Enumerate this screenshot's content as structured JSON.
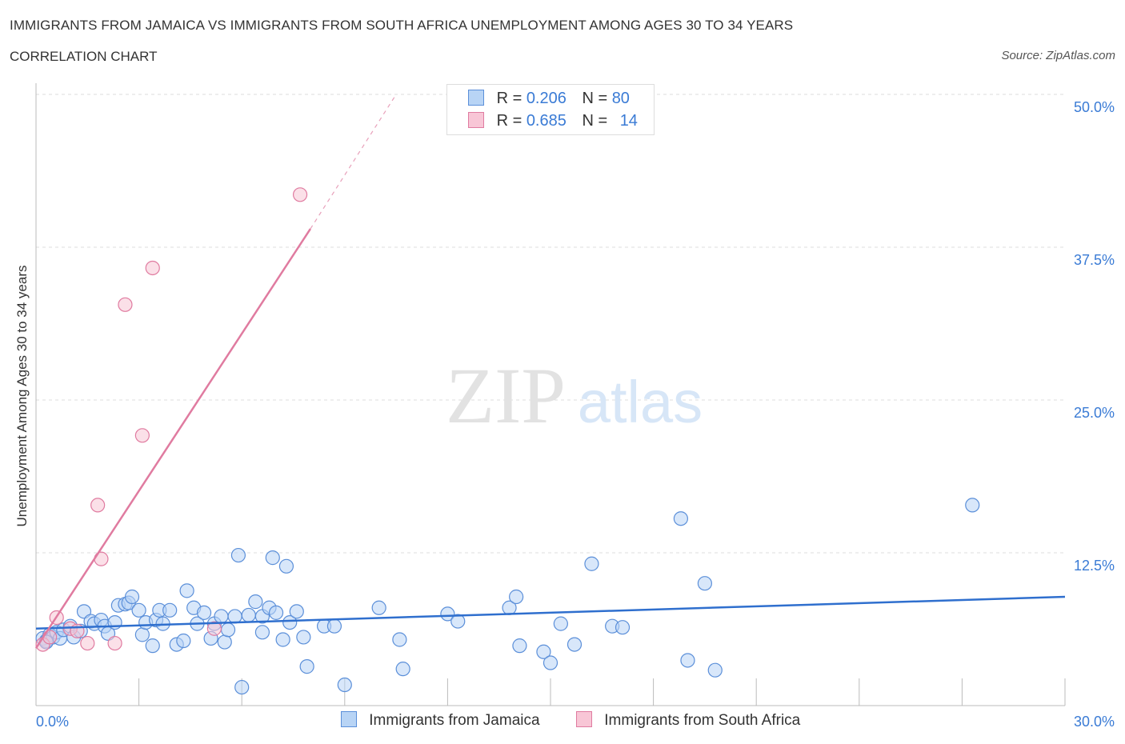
{
  "header": {
    "title": "IMMIGRANTS FROM JAMAICA VS IMMIGRANTS FROM SOUTH AFRICA UNEMPLOYMENT AMONG AGES 30 TO 34 YEARS",
    "subtitle": "CORRELATION CHART",
    "source": "Source: ZipAtlas.com"
  },
  "legend": {
    "r_label": "R =",
    "n_label": "N =",
    "series": [
      {
        "name": "Immigrants from Jamaica",
        "r": "0.206",
        "n": "80",
        "fill": "#b8d4f5",
        "stroke": "#5b8fd9"
      },
      {
        "name": "Immigrants from South Africa",
        "r": "0.685",
        "n": "14",
        "fill": "#f8c6d6",
        "stroke": "#e07ba0"
      }
    ]
  },
  "watermark": {
    "zip": "ZIP",
    "atlas": "atlas"
  },
  "chart_data": {
    "type": "scatter",
    "title": "IMMIGRANTS FROM JAMAICA VS IMMIGRANTS FROM SOUTH AFRICA UNEMPLOYMENT AMONG AGES 30 TO 34 YEARS",
    "xlabel": "",
    "ylabel": "Unemployment Among Ages 30 to 34 years",
    "xlim": [
      0,
      30
    ],
    "ylim": [
      0,
      50
    ],
    "x_tick_labels": [
      "0.0%",
      "30.0%"
    ],
    "y_tick_labels": [
      "12.5%",
      "25.0%",
      "37.5%",
      "50.0%"
    ],
    "y_tick_values": [
      12.5,
      25.0,
      37.5,
      50.0
    ],
    "x_minor_ticks": [
      0,
      3,
      6,
      9,
      12,
      15,
      18,
      21,
      24,
      27,
      30
    ],
    "series": [
      {
        "name": "Immigrants from Jamaica",
        "color": "#5b8fd9",
        "fill": "#b8d4f5",
        "points": [
          [
            0.2,
            5.5
          ],
          [
            0.3,
            5.3
          ],
          [
            0.4,
            5.8
          ],
          [
            0.5,
            5.6
          ],
          [
            0.6,
            6.0
          ],
          [
            0.7,
            5.5
          ],
          [
            0.8,
            6.2
          ],
          [
            1.0,
            6.5
          ],
          [
            1.1,
            5.6
          ],
          [
            1.3,
            6.1
          ],
          [
            1.4,
            7.7
          ],
          [
            1.6,
            6.9
          ],
          [
            1.7,
            6.7
          ],
          [
            1.9,
            7.0
          ],
          [
            2.0,
            6.5
          ],
          [
            2.1,
            5.9
          ],
          [
            2.3,
            6.8
          ],
          [
            2.4,
            8.2
          ],
          [
            2.6,
            8.3
          ],
          [
            2.7,
            8.4
          ],
          [
            2.8,
            8.9
          ],
          [
            3.0,
            7.8
          ],
          [
            3.1,
            5.8
          ],
          [
            3.2,
            6.8
          ],
          [
            3.4,
            4.9
          ],
          [
            3.5,
            7.0
          ],
          [
            3.6,
            7.8
          ],
          [
            3.7,
            6.7
          ],
          [
            3.9,
            7.8
          ],
          [
            4.1,
            5.0
          ],
          [
            4.3,
            5.3
          ],
          [
            4.4,
            9.4
          ],
          [
            4.6,
            8.0
          ],
          [
            4.7,
            6.7
          ],
          [
            4.9,
            7.6
          ],
          [
            5.1,
            5.5
          ],
          [
            5.2,
            6.7
          ],
          [
            5.4,
            7.3
          ],
          [
            5.5,
            5.2
          ],
          [
            5.6,
            6.2
          ],
          [
            5.8,
            7.3
          ],
          [
            5.9,
            12.3
          ],
          [
            6.0,
            1.5
          ],
          [
            6.2,
            7.4
          ],
          [
            6.4,
            8.5
          ],
          [
            6.6,
            7.3
          ],
          [
            6.6,
            6.0
          ],
          [
            6.8,
            8.0
          ],
          [
            6.9,
            12.1
          ],
          [
            7.0,
            7.6
          ],
          [
            7.2,
            5.4
          ],
          [
            7.3,
            11.4
          ],
          [
            7.4,
            6.8
          ],
          [
            7.6,
            7.7
          ],
          [
            7.8,
            5.6
          ],
          [
            7.9,
            3.2
          ],
          [
            8.4,
            6.5
          ],
          [
            8.7,
            6.5
          ],
          [
            9.0,
            1.7
          ],
          [
            10.0,
            8.0
          ],
          [
            10.6,
            5.4
          ],
          [
            10.7,
            3.0
          ],
          [
            12.0,
            7.5
          ],
          [
            12.3,
            6.9
          ],
          [
            13.8,
            8.0
          ],
          [
            14.0,
            8.9
          ],
          [
            14.1,
            4.9
          ],
          [
            14.8,
            4.4
          ],
          [
            15.0,
            3.5
          ],
          [
            15.3,
            6.7
          ],
          [
            15.7,
            5.0
          ],
          [
            16.2,
            11.6
          ],
          [
            16.8,
            6.5
          ],
          [
            17.1,
            6.4
          ],
          [
            18.8,
            15.3
          ],
          [
            19.0,
            3.7
          ],
          [
            19.5,
            10.0
          ],
          [
            19.8,
            2.9
          ],
          [
            27.3,
            16.4
          ],
          [
            0.3,
            5.2
          ]
        ]
      },
      {
        "name": "Immigrants from South Africa",
        "color": "#e07ba0",
        "fill": "#f8c6d6",
        "points": [
          [
            0.2,
            5.0
          ],
          [
            0.4,
            5.6
          ],
          [
            0.6,
            7.2
          ],
          [
            1.0,
            6.3
          ],
          [
            1.2,
            6.1
          ],
          [
            1.5,
            5.1
          ],
          [
            1.8,
            16.4
          ],
          [
            1.9,
            12.0
          ],
          [
            2.3,
            5.1
          ],
          [
            2.6,
            32.8
          ],
          [
            3.1,
            22.1
          ],
          [
            3.4,
            35.8
          ],
          [
            5.2,
            6.3
          ],
          [
            7.7,
            41.8
          ]
        ]
      }
    ],
    "trendlines": [
      {
        "series": "Immigrants from Jamaica",
        "x": [
          0,
          30
        ],
        "y": [
          6.3,
          8.9
        ]
      },
      {
        "series": "Immigrants from South Africa",
        "x": [
          0,
          8.0
        ],
        "y": [
          4.7,
          39.0
        ],
        "dashed_extension_to": [
          10.5,
          50.0
        ]
      }
    ]
  }
}
